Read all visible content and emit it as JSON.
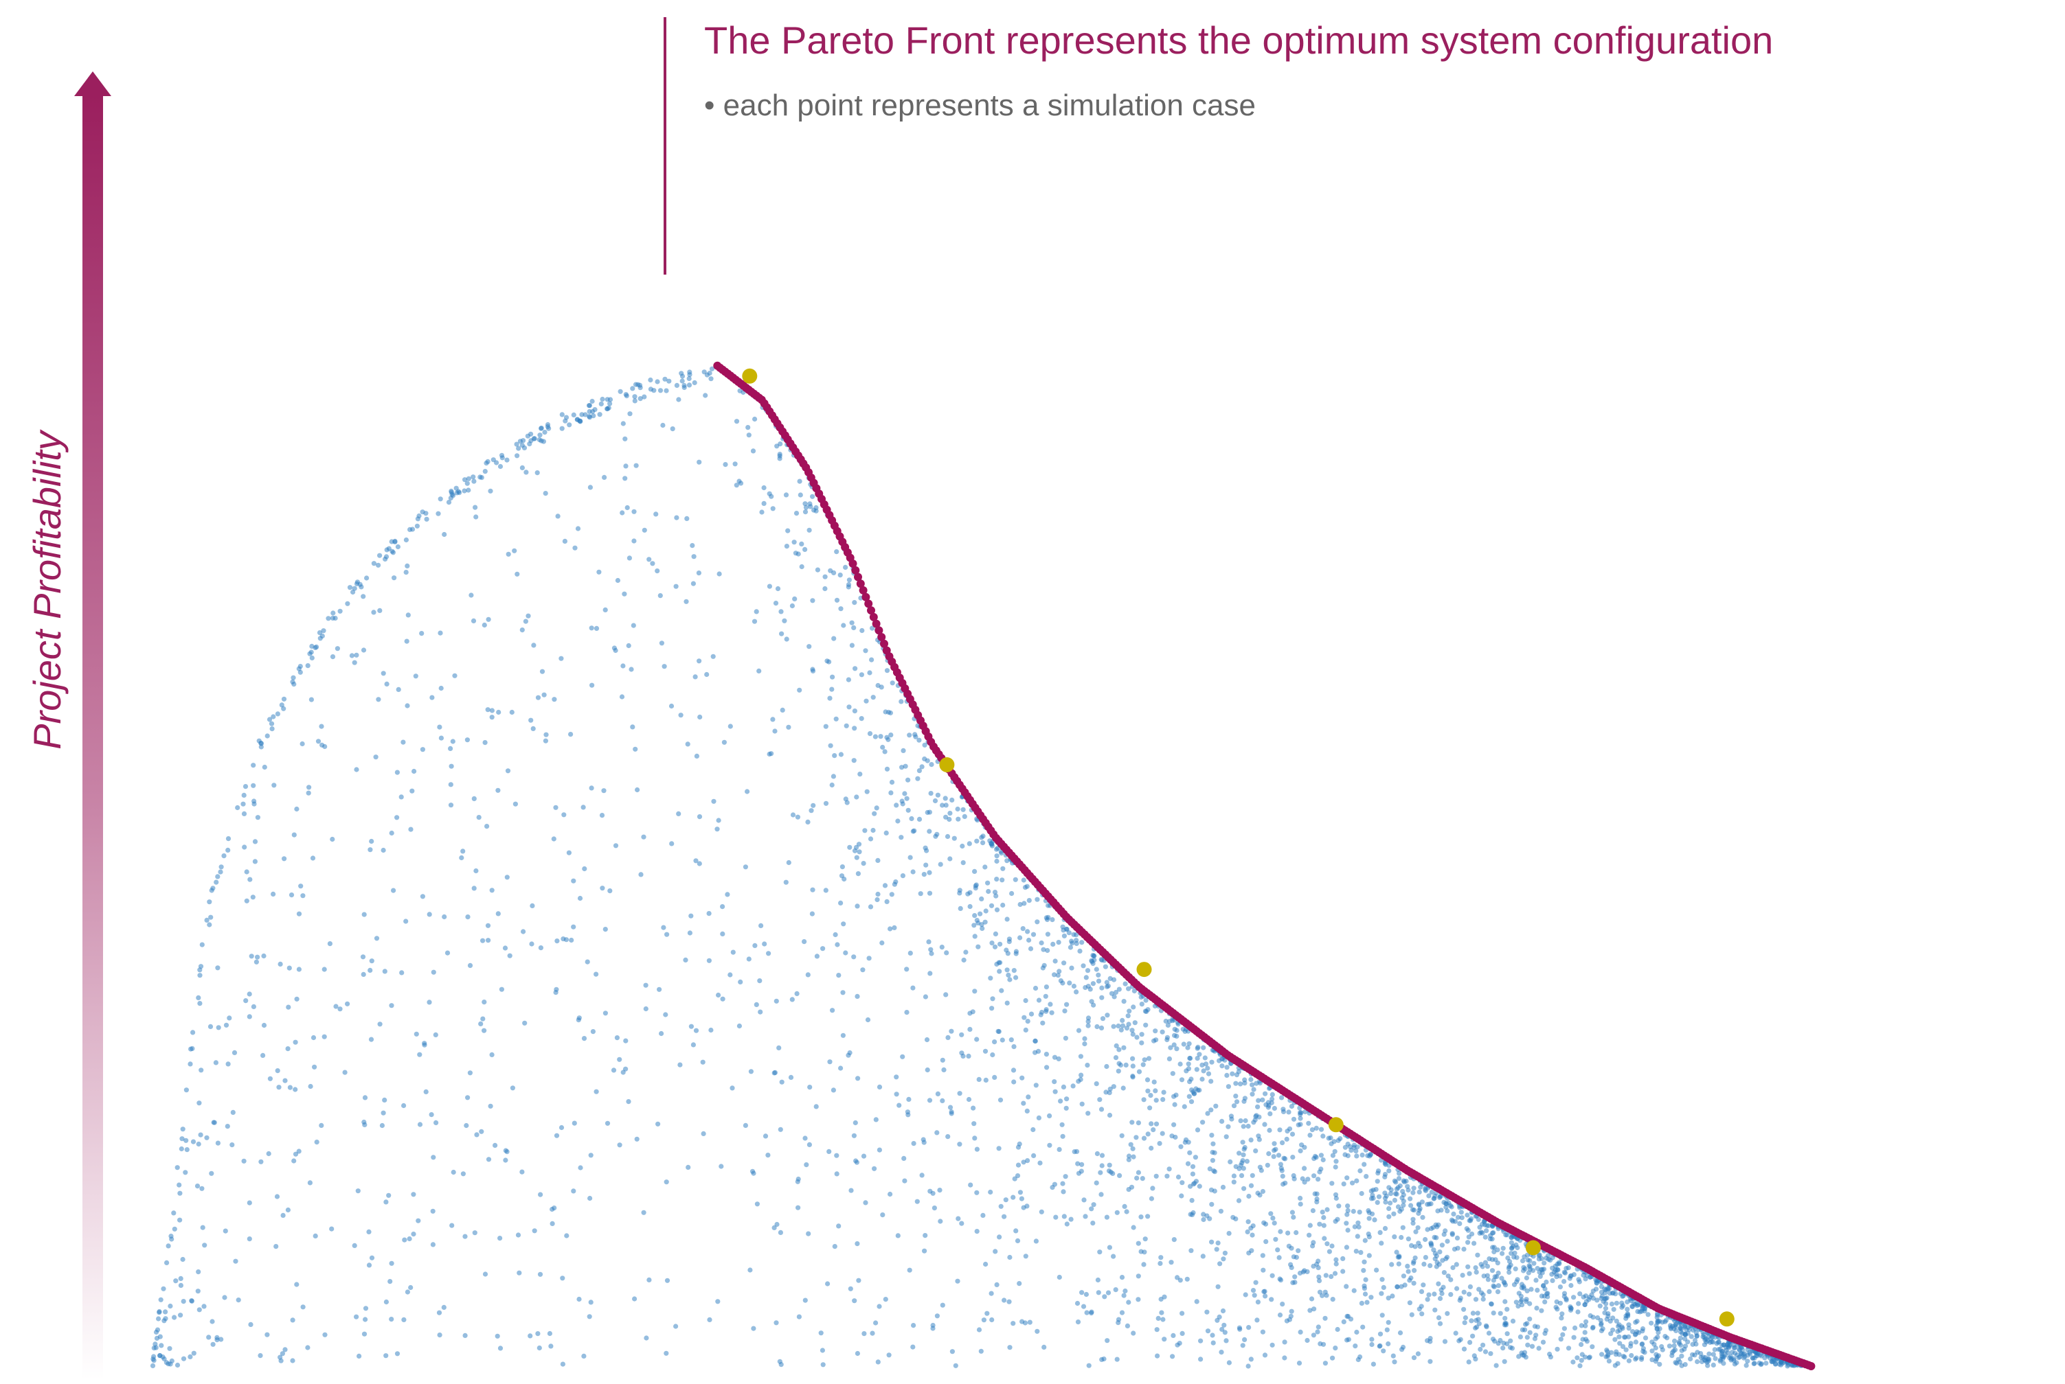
{
  "chart_data": {
    "type": "scatter",
    "title": "The Pareto Front represents the optimum system configuration",
    "subtitle": "• each point represents a simulation case",
    "ylabel": "Project Profitability",
    "xlabel": "",
    "xlim": [
      0,
      100
    ],
    "ylim": [
      0,
      100
    ],
    "grid": false,
    "axis_ticks": false,
    "colors": {
      "accent": "#9b1f5e",
      "pareto": "#a3105a",
      "cases": "#2b7bbf",
      "highlight": "#c9b300",
      "subtitle": "#666666"
    },
    "series": [
      {
        "role": "cases",
        "count": 4000,
        "values": [
          {
            "x": 2.0,
            "y": 1.0
          },
          {
            "x": 3.0,
            "y": 12.0
          },
          {
            "x": 5.0,
            "y": 40.0
          },
          {
            "x": 8.0,
            "y": 55.0
          },
          {
            "x": 12.0,
            "y": 66.0
          },
          {
            "x": 16.0,
            "y": 73.0
          },
          {
            "x": 20.0,
            "y": 78.0
          },
          {
            "x": 25.0,
            "y": 83.0
          },
          {
            "x": 30.0,
            "y": 86.0
          },
          {
            "x": 33.5,
            "y": 87.0
          },
          {
            "x": 20.0,
            "y": 30.0
          },
          {
            "x": 30.0,
            "y": 20.0
          },
          {
            "x": 45.0,
            "y": 40.0
          },
          {
            "x": 55.0,
            "y": 25.0
          },
          {
            "x": 70.0,
            "y": 10.0
          },
          {
            "x": 80.0,
            "y": 5.0
          },
          {
            "x": 90.0,
            "y": 2.0
          }
        ]
      },
      {
        "role": "pareto-front",
        "values": [
          {
            "x": 33.5,
            "y": 87.0
          },
          {
            "x": 36.0,
            "y": 84.0
          },
          {
            "x": 38.5,
            "y": 78.0
          },
          {
            "x": 41.0,
            "y": 70.0
          },
          {
            "x": 43.0,
            "y": 62.0
          },
          {
            "x": 45.5,
            "y": 54.0
          },
          {
            "x": 49.0,
            "y": 46.0
          },
          {
            "x": 53.0,
            "y": 39.0
          },
          {
            "x": 57.0,
            "y": 33.0
          },
          {
            "x": 62.0,
            "y": 27.0
          },
          {
            "x": 67.0,
            "y": 22.0
          },
          {
            "x": 72.0,
            "y": 17.0
          },
          {
            "x": 77.0,
            "y": 12.5
          },
          {
            "x": 82.0,
            "y": 8.5
          },
          {
            "x": 86.0,
            "y": 5.0
          },
          {
            "x": 90.0,
            "y": 2.5
          },
          {
            "x": 94.5,
            "y": 0.0
          }
        ]
      },
      {
        "role": "highlighted-points",
        "values": [
          {
            "x": 35.3,
            "y": 86.1
          },
          {
            "x": 46.3,
            "y": 52.3
          },
          {
            "x": 57.3,
            "y": 34.5
          },
          {
            "x": 68.0,
            "y": 21.0
          },
          {
            "x": 79.0,
            "y": 10.3
          },
          {
            "x": 89.8,
            "y": 4.1
          }
        ]
      }
    ]
  }
}
